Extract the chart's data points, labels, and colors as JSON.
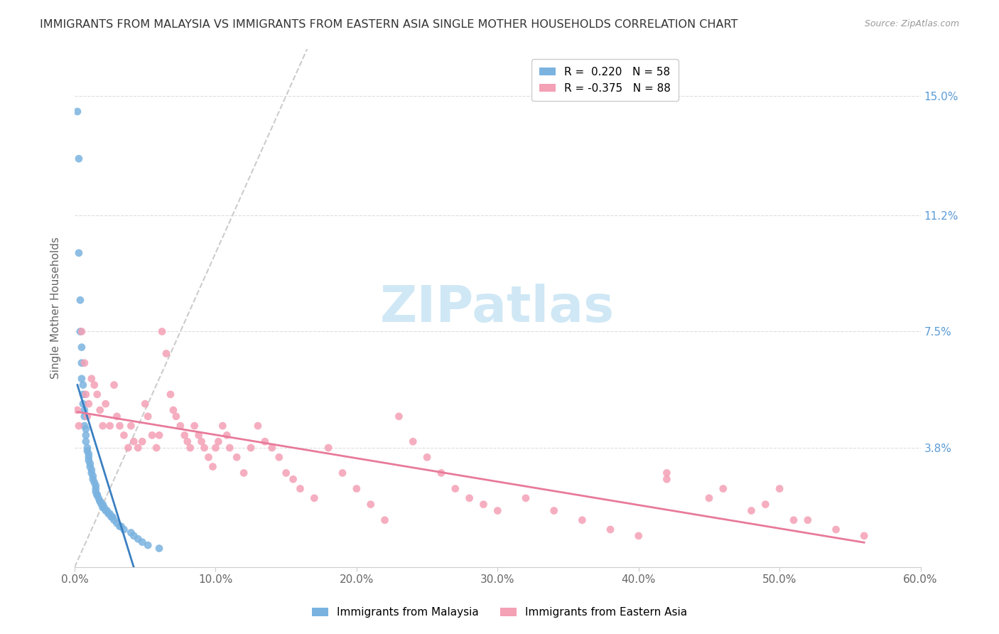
{
  "title": "IMMIGRANTS FROM MALAYSIA VS IMMIGRANTS FROM EASTERN ASIA SINGLE MOTHER HOUSEHOLDS CORRELATION CHART",
  "source": "Source: ZipAtlas.com",
  "ylabel": "Single Mother Households",
  "ytick_labels": [
    "15.0%",
    "11.2%",
    "7.5%",
    "3.8%"
  ],
  "ytick_values": [
    0.15,
    0.112,
    0.075,
    0.038
  ],
  "xlim": [
    0.0,
    0.6
  ],
  "ylim": [
    0.0,
    0.165
  ],
  "R_malaysia": 0.22,
  "N_malaysia": 58,
  "R_eastern_asia": -0.375,
  "N_eastern_asia": 88,
  "color_malaysia": "#7ab3e0",
  "color_eastern_asia": "#f4a0b5",
  "line_color_malaysia": "#3a7fc1",
  "line_color_eastern_asia": "#e87a9a",
  "diagonal_color": "#cccccc",
  "background_color": "#ffffff",
  "watermark_text": "ZIPatlas",
  "watermark_color": "#d0e8f5",
  "malaysia_x": [
    0.002,
    0.003,
    0.003,
    0.004,
    0.004,
    0.005,
    0.005,
    0.005,
    0.006,
    0.006,
    0.006,
    0.007,
    0.007,
    0.007,
    0.008,
    0.008,
    0.008,
    0.009,
    0.009,
    0.01,
    0.01,
    0.01,
    0.011,
    0.011,
    0.012,
    0.012,
    0.013,
    0.013,
    0.014,
    0.015,
    0.015,
    0.015,
    0.016,
    0.016,
    0.017,
    0.018,
    0.018,
    0.019,
    0.02,
    0.02,
    0.021,
    0.022,
    0.023,
    0.024,
    0.025,
    0.026,
    0.027,
    0.028,
    0.03,
    0.032,
    0.033,
    0.035,
    0.04,
    0.042,
    0.045,
    0.048,
    0.052,
    0.06
  ],
  "malaysia_y": [
    0.145,
    0.13,
    0.1,
    0.085,
    0.075,
    0.07,
    0.065,
    0.06,
    0.058,
    0.055,
    0.052,
    0.05,
    0.048,
    0.045,
    0.044,
    0.042,
    0.04,
    0.038,
    0.037,
    0.036,
    0.035,
    0.034,
    0.033,
    0.032,
    0.031,
    0.03,
    0.029,
    0.028,
    0.027,
    0.026,
    0.025,
    0.024,
    0.023,
    0.023,
    0.022,
    0.021,
    0.021,
    0.02,
    0.02,
    0.019,
    0.019,
    0.018,
    0.018,
    0.017,
    0.017,
    0.016,
    0.016,
    0.015,
    0.014,
    0.013,
    0.013,
    0.012,
    0.011,
    0.01,
    0.009,
    0.008,
    0.007,
    0.006
  ],
  "eastern_asia_x": [
    0.002,
    0.003,
    0.005,
    0.007,
    0.008,
    0.009,
    0.01,
    0.012,
    0.014,
    0.016,
    0.018,
    0.02,
    0.022,
    0.025,
    0.028,
    0.03,
    0.032,
    0.035,
    0.038,
    0.04,
    0.042,
    0.045,
    0.048,
    0.05,
    0.052,
    0.055,
    0.058,
    0.06,
    0.062,
    0.065,
    0.068,
    0.07,
    0.072,
    0.075,
    0.078,
    0.08,
    0.082,
    0.085,
    0.088,
    0.09,
    0.092,
    0.095,
    0.098,
    0.1,
    0.102,
    0.105,
    0.108,
    0.11,
    0.115,
    0.12,
    0.125,
    0.13,
    0.135,
    0.14,
    0.145,
    0.15,
    0.155,
    0.16,
    0.17,
    0.18,
    0.19,
    0.2,
    0.21,
    0.22,
    0.23,
    0.24,
    0.25,
    0.26,
    0.27,
    0.28,
    0.29,
    0.3,
    0.32,
    0.34,
    0.36,
    0.38,
    0.4,
    0.42,
    0.45,
    0.48,
    0.5,
    0.52,
    0.54,
    0.56,
    0.42,
    0.46,
    0.49,
    0.51
  ],
  "eastern_asia_y": [
    0.05,
    0.045,
    0.075,
    0.065,
    0.055,
    0.048,
    0.052,
    0.06,
    0.058,
    0.055,
    0.05,
    0.045,
    0.052,
    0.045,
    0.058,
    0.048,
    0.045,
    0.042,
    0.038,
    0.045,
    0.04,
    0.038,
    0.04,
    0.052,
    0.048,
    0.042,
    0.038,
    0.042,
    0.075,
    0.068,
    0.055,
    0.05,
    0.048,
    0.045,
    0.042,
    0.04,
    0.038,
    0.045,
    0.042,
    0.04,
    0.038,
    0.035,
    0.032,
    0.038,
    0.04,
    0.045,
    0.042,
    0.038,
    0.035,
    0.03,
    0.038,
    0.045,
    0.04,
    0.038,
    0.035,
    0.03,
    0.028,
    0.025,
    0.022,
    0.038,
    0.03,
    0.025,
    0.02,
    0.015,
    0.048,
    0.04,
    0.035,
    0.03,
    0.025,
    0.022,
    0.02,
    0.018,
    0.022,
    0.018,
    0.015,
    0.012,
    0.01,
    0.028,
    0.022,
    0.018,
    0.025,
    0.015,
    0.012,
    0.01,
    0.03,
    0.025,
    0.02,
    0.015
  ]
}
